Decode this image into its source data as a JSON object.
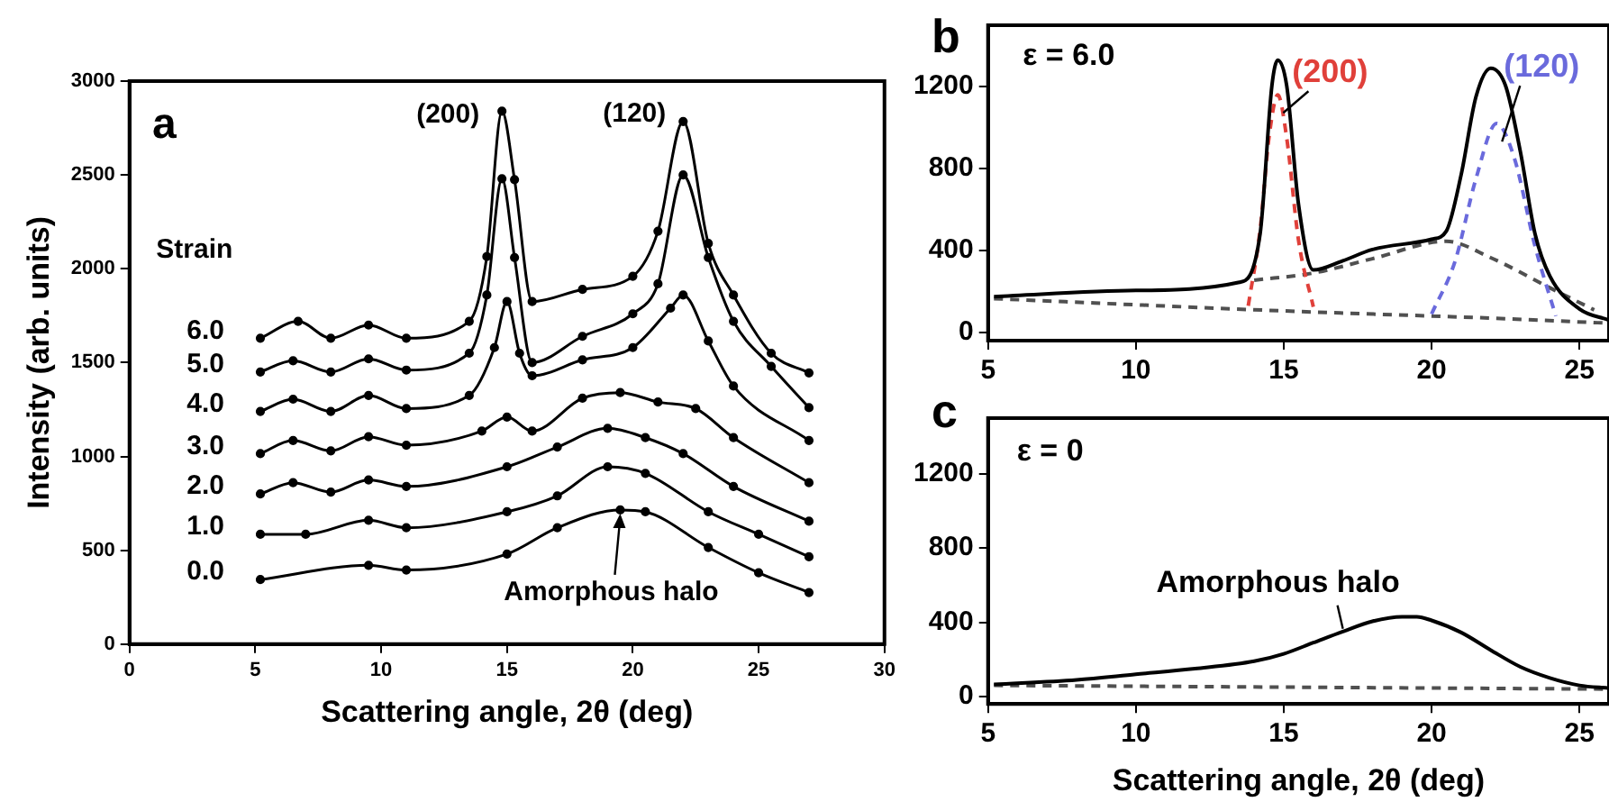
{
  "chart_data": [
    {
      "type": "line",
      "xlabel": "Scattering angle, 2θ (deg)",
      "ylabel": "Intensity (arb. units)",
      "xlim": [
        0,
        30
      ],
      "xticks": [
        0,
        5,
        10,
        15,
        20,
        25,
        30
      ],
      "ylim": [
        0,
        3000
      ],
      "yticks": [
        0,
        500,
        1000,
        1500,
        2000,
        2500,
        3000
      ],
      "marker": "circle",
      "grid": false,
      "legend": false,
      "annotations": [
        "a",
        "Strain",
        {
          "text": "(200)",
          "x": 14.8,
          "y": 2840
        },
        {
          "text": "(120)",
          "x": 22,
          "y": 2785
        },
        {
          "text": "Amorphous halo",
          "x": 19.5,
          "y": 715
        }
      ],
      "series": [
        {
          "name": "6.0",
          "color": "#000000",
          "x": [
            5.2,
            6.7,
            8,
            9.5,
            11,
            13.5,
            14.2,
            14.8,
            15.3,
            16,
            18,
            20,
            21,
            22,
            23,
            24,
            25.5,
            27
          ],
          "values": [
            1630,
            1720,
            1630,
            1700,
            1630,
            1720,
            2065,
            2840,
            2475,
            1825,
            1890,
            1960,
            2200,
            2785,
            2135,
            1860,
            1550,
            1445
          ]
        },
        {
          "name": "5.0",
          "color": "#000000",
          "x": [
            5.2,
            6.5,
            8,
            9.5,
            11,
            13.5,
            14.2,
            14.8,
            15.3,
            16,
            18,
            20,
            21,
            22,
            23,
            24,
            25.5,
            27
          ],
          "values": [
            1450,
            1510,
            1450,
            1520,
            1460,
            1550,
            1860,
            2480,
            2060,
            1500,
            1640,
            1760,
            1920,
            2500,
            2060,
            1720,
            1480,
            1260
          ]
        },
        {
          "name": "4.0",
          "color": "#000000",
          "x": [
            5.2,
            6.5,
            8,
            9.5,
            11,
            13.5,
            14.5,
            15,
            15.5,
            16,
            18,
            20,
            21.5,
            22,
            23,
            24,
            27
          ],
          "values": [
            1240,
            1305,
            1240,
            1325,
            1255,
            1325,
            1580,
            1825,
            1550,
            1430,
            1515,
            1580,
            1790,
            1860,
            1615,
            1375,
            1085
          ]
        },
        {
          "name": "3.0",
          "color": "#000000",
          "x": [
            5.2,
            6.5,
            8,
            9.5,
            11,
            14,
            15,
            16,
            18,
            19.5,
            21,
            22.5,
            24,
            27
          ],
          "values": [
            1015,
            1085,
            1030,
            1105,
            1060,
            1135,
            1210,
            1135,
            1310,
            1340,
            1290,
            1255,
            1100,
            860
          ]
        },
        {
          "name": "2.0",
          "color": "#000000",
          "x": [
            5.2,
            6.5,
            8,
            9.5,
            11,
            15,
            17,
            19,
            20.5,
            22,
            24,
            27
          ],
          "values": [
            800,
            860,
            810,
            875,
            840,
            945,
            1050,
            1150,
            1100,
            1015,
            840,
            655
          ]
        },
        {
          "name": "1.0",
          "color": "#000000",
          "x": [
            5.2,
            7,
            9.5,
            11,
            15,
            17,
            19,
            20.5,
            23,
            25,
            27
          ],
          "values": [
            585,
            585,
            660,
            620,
            705,
            790,
            945,
            910,
            705,
            585,
            465
          ]
        },
        {
          "name": "0.0",
          "color": "#000000",
          "x": [
            5.2,
            9.5,
            11,
            15,
            17,
            19.5,
            20.5,
            23,
            25,
            27
          ],
          "values": [
            344,
            420,
            395,
            480,
            620,
            715,
            705,
            515,
            380,
            275
          ]
        }
      ]
    },
    {
      "type": "line",
      "xlim": [
        5,
        26
      ],
      "xticks": [
        5,
        10,
        15,
        20,
        25
      ],
      "ylim": [
        -40,
        1500
      ],
      "yticks": [
        0,
        400,
        800,
        1200
      ],
      "marker": "none",
      "grid": false,
      "legend": false,
      "annotations": [
        "b",
        "ε = 6.0"
      ],
      "series": [
        {
          "color": "#000000",
          "line_style": "solid",
          "x": [
            5.2,
            10,
            13.5,
            14.2,
            14.6,
            14.8,
            15.1,
            15.5,
            16,
            17,
            18,
            20,
            20.5,
            21,
            21.5,
            22,
            22.5,
            23,
            23.5,
            24,
            25,
            26
          ],
          "values": [
            175,
            205,
            245,
            480,
            1205,
            1330,
            1205,
            625,
            305,
            350,
            405,
            455,
            495,
            770,
            1150,
            1290,
            1205,
            885,
            480,
            275,
            115,
            60
          ]
        },
        {
          "name": "(200)",
          "color": "#e0403a",
          "line_style": "dashed",
          "x": [
            13.8,
            14.2,
            14.5,
            14.8,
            15.1,
            15.5,
            16
          ],
          "values": [
            130,
            500,
            950,
            1160,
            950,
            450,
            125
          ]
        },
        {
          "name": "(120)",
          "color": "#6a6adc",
          "line_style": "dashed",
          "x": [
            20,
            20.8,
            21.5,
            22.2,
            22.8,
            23.5,
            24.2
          ],
          "values": [
            90,
            350,
            750,
            1020,
            850,
            420,
            80
          ]
        },
        {
          "color": "#505050",
          "line_style": "dashed",
          "x": [
            5.2,
            10,
            15,
            20,
            22,
            26
          ],
          "values": [
            165,
            135,
            105,
            80,
            70,
            45
          ]
        },
        {
          "color": "#505050",
          "line_style": "dashed",
          "x": [
            14,
            16,
            18,
            20.5,
            22,
            24,
            25.5
          ],
          "values": [
            255,
            290,
            360,
            445,
            365,
            218,
            110
          ]
        }
      ]
    },
    {
      "type": "line",
      "xlabel": "Scattering angle, 2θ (deg)",
      "xlim": [
        5,
        26
      ],
      "xticks": [
        5,
        10,
        15,
        20,
        25
      ],
      "ylim": [
        -40,
        1500
      ],
      "yticks": [
        0,
        400,
        800,
        1200
      ],
      "marker": "none",
      "grid": false,
      "legend": false,
      "annotations": [
        "c",
        "ε = 0",
        {
          "text": "Amorphous halo",
          "x": 17,
          "y": 355
        }
      ],
      "series": [
        {
          "color": "#000000",
          "line_style": "solid",
          "x": [
            5.2,
            8,
            10,
            12,
            14,
            15,
            16,
            17,
            18,
            19,
            19.5,
            20,
            21,
            22,
            23,
            24,
            25,
            26
          ],
          "values": [
            65,
            90,
            120,
            150,
            190,
            230,
            290,
            350,
            405,
            430,
            430,
            410,
            345,
            250,
            160,
            100,
            60,
            45
          ]
        },
        {
          "color": "#505050",
          "line_style": "dashed",
          "x": [
            5.2,
            26
          ],
          "values": [
            60,
            40
          ]
        }
      ]
    }
  ]
}
